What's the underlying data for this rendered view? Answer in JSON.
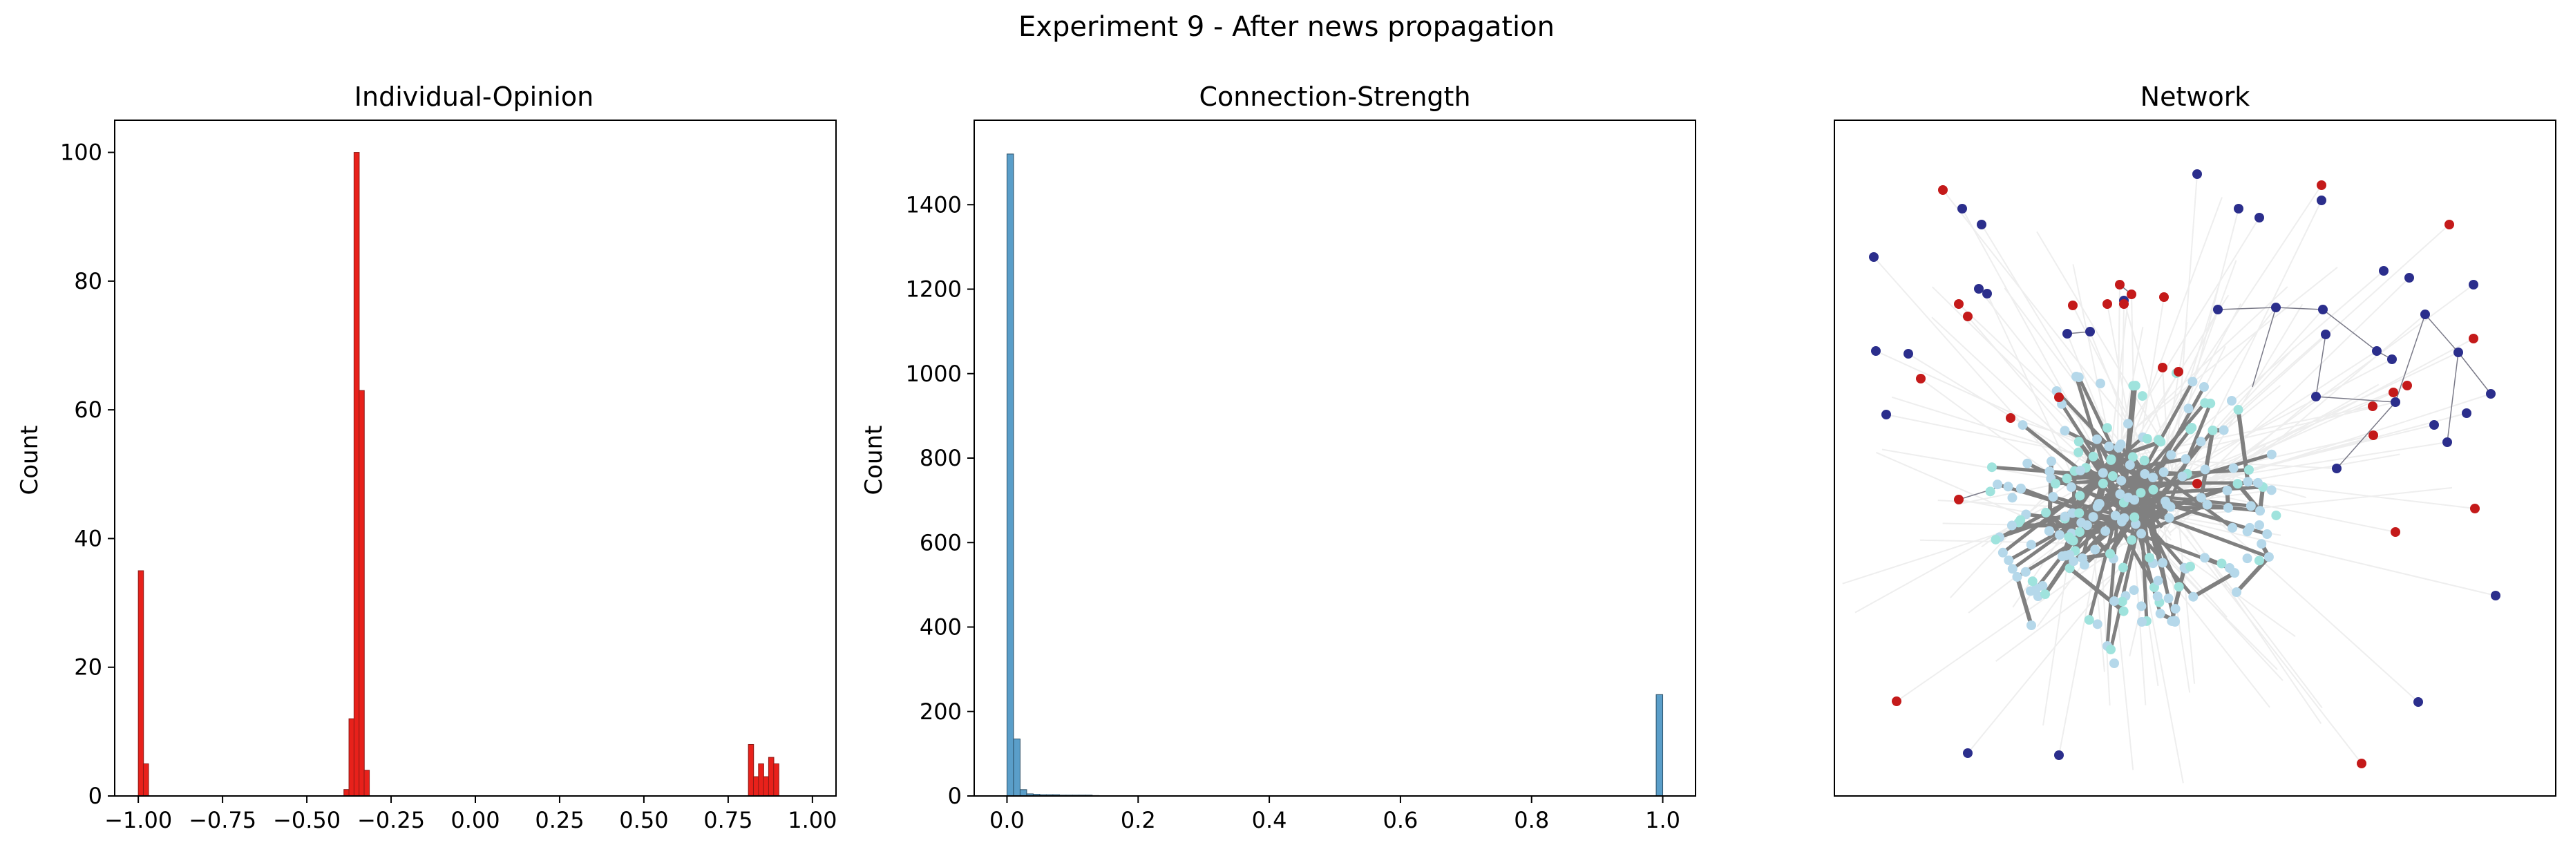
{
  "figure": {
    "suptitle": "Experiment 9 - After news propagation"
  },
  "chart_data": [
    {
      "type": "bar",
      "title": "Individual-Opinion",
      "xlabel": "",
      "ylabel": "Count",
      "xlim": [
        -1.07,
        1.07
      ],
      "ylim": [
        0,
        105
      ],
      "xticks": [
        -1.0,
        -0.75,
        -0.5,
        -0.25,
        0.0,
        0.25,
        0.5,
        0.75,
        1.0
      ],
      "xtick_labels": [
        "−1.00",
        "−0.75",
        "−0.50",
        "−0.25",
        "0.00",
        "0.25",
        "0.50",
        "0.75",
        "1.00"
      ],
      "yticks": [
        0,
        20,
        40,
        60,
        80,
        100
      ],
      "ytick_labels": [
        "0",
        "20",
        "40",
        "60",
        "80",
        "100"
      ],
      "bin_width": 0.0155,
      "bars": [
        {
          "x": -1.0,
          "value": 35
        },
        {
          "x": -0.985,
          "value": 5
        },
        {
          "x": -0.39,
          "value": 1
        },
        {
          "x": -0.375,
          "value": 12
        },
        {
          "x": -0.36,
          "value": 100
        },
        {
          "x": -0.345,
          "value": 63
        },
        {
          "x": -0.33,
          "value": 4
        },
        {
          "x": 0.81,
          "value": 8
        },
        {
          "x": 0.825,
          "value": 3
        },
        {
          "x": 0.84,
          "value": 5
        },
        {
          "x": 0.855,
          "value": 3
        },
        {
          "x": 0.87,
          "value": 6
        },
        {
          "x": 0.885,
          "value": 5
        }
      ],
      "color": "#e8211b",
      "edge_color": "#8c1a16"
    },
    {
      "type": "bar",
      "title": "Connection-Strength",
      "xlabel": "",
      "ylabel": "Count",
      "xlim": [
        -0.05,
        1.05
      ],
      "ylim": [
        0,
        1600
      ],
      "xticks": [
        0.0,
        0.2,
        0.4,
        0.6,
        0.8,
        1.0
      ],
      "xtick_labels": [
        "0.0",
        "0.2",
        "0.4",
        "0.6",
        "0.8",
        "1.0"
      ],
      "yticks": [
        0,
        200,
        400,
        600,
        800,
        1000,
        1200,
        1400
      ],
      "ytick_labels": [
        "0",
        "200",
        "400",
        "600",
        "800",
        "1000",
        "1200",
        "1400"
      ],
      "bin_width": 0.01,
      "bars": [
        {
          "x": 0.0,
          "value": 1520
        },
        {
          "x": 0.01,
          "value": 135
        },
        {
          "x": 0.02,
          "value": 15
        },
        {
          "x": 0.03,
          "value": 5
        },
        {
          "x": 0.04,
          "value": 4
        },
        {
          "x": 0.05,
          "value": 3
        },
        {
          "x": 0.06,
          "value": 3
        },
        {
          "x": 0.07,
          "value": 3
        },
        {
          "x": 0.08,
          "value": 2
        },
        {
          "x": 0.09,
          "value": 2
        },
        {
          "x": 0.1,
          "value": 2
        },
        {
          "x": 0.11,
          "value": 2
        },
        {
          "x": 0.12,
          "value": 2
        },
        {
          "x": 0.13,
          "value": 1
        },
        {
          "x": 0.99,
          "value": 240
        }
      ],
      "color": "#5a9ec9",
      "edge_color": "#2c4f66"
    },
    {
      "type": "network",
      "title": "Network",
      "colors": {
        "blue_node": "#2b2e8c",
        "red_node": "#c41a1a",
        "teal_node": "#9fe3dd",
        "light_node": "#b5d8ea",
        "strong_edge": "#808080",
        "faint_edge": "#eeeeee",
        "thin_edge": "#7a7a88"
      }
    }
  ]
}
